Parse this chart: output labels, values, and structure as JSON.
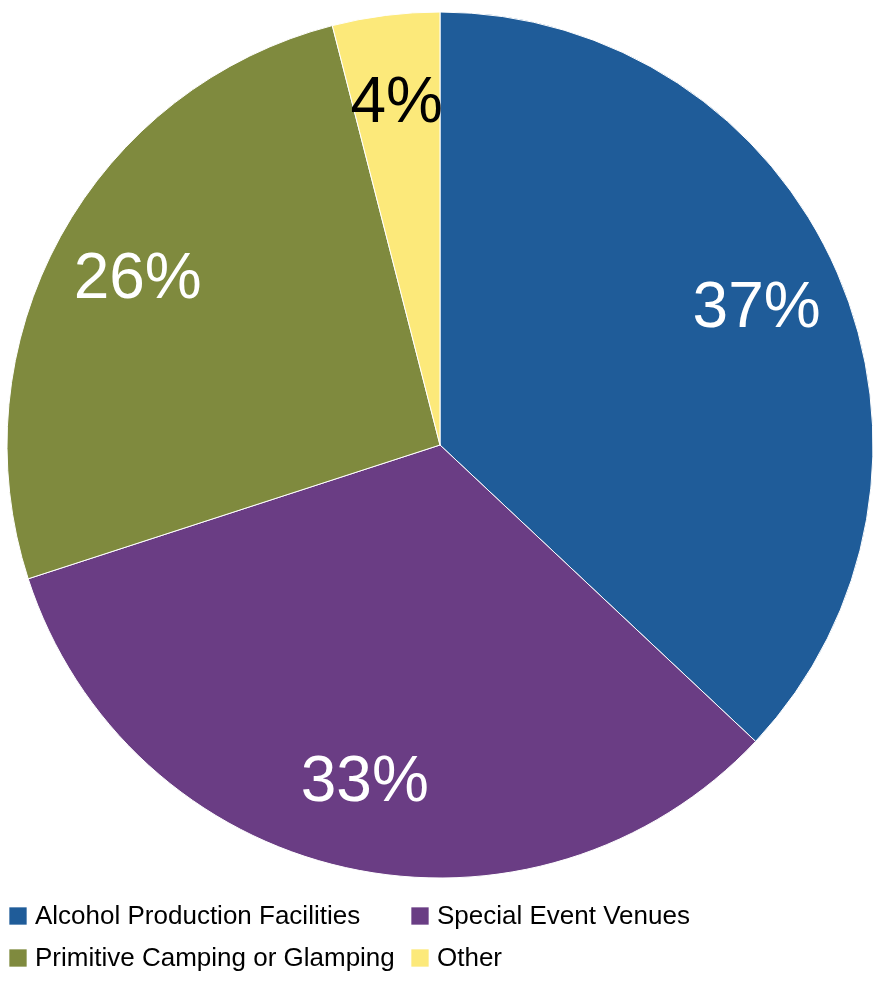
{
  "chart_data": {
    "type": "pie",
    "categories": [
      "Alcohol Production Facilities",
      "Special Event Venues",
      "Primitive Camping or Glamping",
      "Other"
    ],
    "values": [
      37,
      33,
      26,
      4
    ],
    "value_labels": [
      "37%",
      "33%",
      "26%",
      "4%"
    ],
    "colors": [
      "#1f5c99",
      "#6a3d84",
      "#7f8a3e",
      "#fce97a"
    ],
    "legend": "bottom"
  }
}
